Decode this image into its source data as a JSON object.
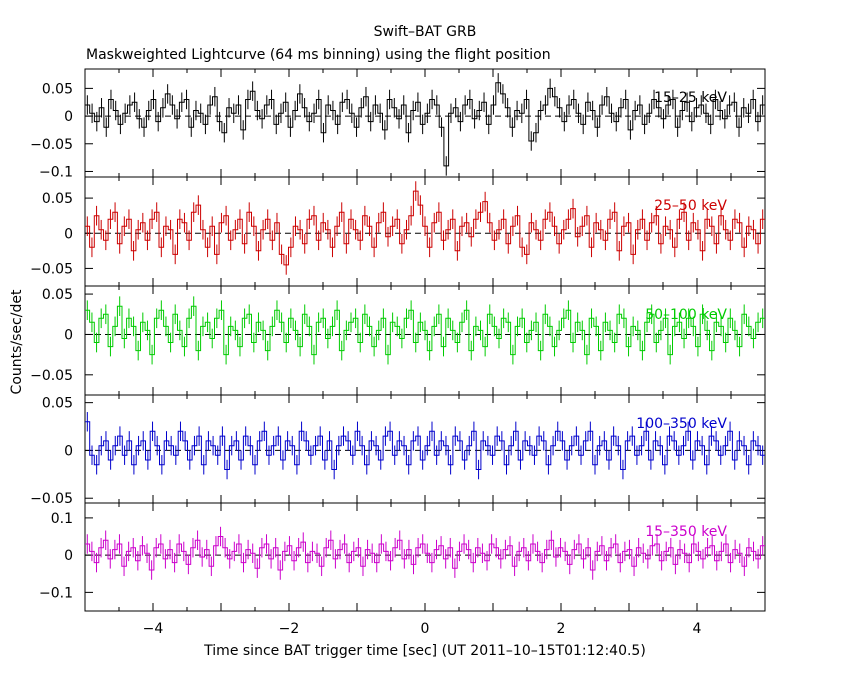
{
  "title": "Swift–BAT GRB",
  "subtitle": "Maskweighted Lightcurve (64 ms binning) using the flight position",
  "xlabel": "Time since BAT trigger time [sec] (UT 2011–10–15T01:12:40.5)",
  "ylabel": "Counts/sec/det",
  "xlim": [
    -5,
    5
  ],
  "xticks": [
    -4,
    -2,
    0,
    2,
    4
  ],
  "xtick_labels": [
    "−4",
    "−2",
    "0",
    "2",
    "4"
  ],
  "chart_data": [
    {
      "type": "line",
      "name": "15–25 keV",
      "color": "#000000",
      "ylim": [
        -0.11,
        0.085
      ],
      "yticks": [
        0.05,
        0,
        -0.05,
        -0.1
      ],
      "ytick_labels": [
        "0.05",
        "0",
        "−0.05",
        "−0.1"
      ],
      "values": [
        0.02,
        0.005,
        -0.01,
        0.015,
        -0.02,
        0.03,
        0.01,
        -0.015,
        0.005,
        0.02,
        0.025,
        -0.005,
        -0.02,
        0.01,
        0.03,
        -0.01,
        0.015,
        0.04,
        0.02,
        -0.005,
        0.025,
        0.03,
        -0.02,
        0.01,
        0.005,
        -0.015,
        0.02,
        0.035,
        -0.01,
        -0.03,
        0.015,
        0.005,
        0.02,
        -0.025,
        0.03,
        0.045,
        0.01,
        -0.005,
        0.02,
        0.03,
        -0.015,
        0.005,
        0.025,
        -0.02,
        0.01,
        0.04,
        0.015,
        -0.01,
        0.005,
        0.03,
        -0.03,
        0.02,
        0.01,
        -0.015,
        0.025,
        0.03,
        0.005,
        -0.02,
        0.015,
        0.035,
        -0.01,
        0.02,
        0.005,
        -0.025,
        0.03,
        0.015,
        -0.005,
        0.02,
        -0.03,
        0.01,
        0.025,
        -0.015,
        0.005,
        0.03,
        0.02,
        -0.02,
        -0.09,
        0.005,
        0.015,
        -0.01,
        0.02,
        0.03,
        -0.005,
        0.01,
        0.025,
        -0.015,
        0.02,
        0.06,
        0.04,
        0.015,
        -0.02,
        0.01,
        0.005,
        0.03,
        -0.045,
        -0.03,
        0.01,
        0.02,
        0.05,
        0.035,
        0.015,
        -0.01,
        0.02,
        0.03,
        0.005,
        -0.015,
        0.025,
        0.01,
        -0.02,
        0.02,
        0.035,
        0.005,
        -0.01,
        0.015,
        0.03,
        -0.025,
        0.01,
        0.02,
        -0.015,
        0.005,
        0.03,
        0.015,
        -0.005,
        0.02,
        0.03,
        -0.02,
        0.01,
        0.025,
        -0.01,
        0.015,
        0.02,
        0.005,
        -0.015,
        0.03,
        0.01,
        -0.005,
        0.02,
        0.025,
        -0.02,
        0.015,
        0.005,
        0.03,
        -0.01,
        0.02
      ]
    },
    {
      "type": "line",
      "name": "25–50 keV",
      "color": "#cc0000",
      "ylim": [
        -0.075,
        0.08
      ],
      "yticks": [
        0.05,
        0,
        -0.05
      ],
      "ytick_labels": [
        "0.05",
        "0",
        "−0.05"
      ],
      "values": [
        0.01,
        -0.02,
        0.025,
        0.005,
        -0.01,
        0.02,
        0.03,
        -0.015,
        0.01,
        0.02,
        -0.025,
        0.005,
        0.015,
        -0.01,
        0.02,
        0.03,
        -0.02,
        0.01,
        0.005,
        -0.03,
        0.02,
        0.015,
        -0.01,
        0.03,
        0.04,
        0.005,
        -0.02,
        0.01,
        -0.03,
        0.015,
        0.025,
        -0.01,
        0.005,
        0.02,
        -0.015,
        0.03,
        0.01,
        -0.025,
        0.005,
        0.02,
        -0.01,
        0.015,
        -0.03,
        -0.045,
        -0.02,
        0.01,
        0.005,
        -0.015,
        0.02,
        0.025,
        -0.01,
        0.015,
        0.005,
        -0.02,
        0.01,
        0.03,
        -0.015,
        0.02,
        0.005,
        -0.01,
        0.025,
        0.01,
        -0.02,
        0.015,
        0.03,
        -0.005,
        0.01,
        0.02,
        -0.015,
        0.005,
        0.025,
        0.06,
        0.04,
        0.01,
        -0.02,
        0.015,
        0.03,
        -0.01,
        0.005,
        0.02,
        -0.025,
        0.01,
        0.015,
        -0.005,
        0.02,
        0.03,
        0.045,
        0.015,
        -0.01,
        0.005,
        0.02,
        -0.015,
        0.01,
        0.025,
        -0.02,
        -0.03,
        0.015,
        0.005,
        -0.01,
        0.02,
        0.03,
        0.01,
        -0.015,
        0.005,
        0.02,
        0.035,
        -0.005,
        0.01,
        0.025,
        -0.02,
        0.015,
        0.005,
        -0.01,
        0.02,
        0.03,
        -0.025,
        0.01,
        0.015,
        -0.03,
        0.005,
        0.02,
        -0.01,
        0.015,
        0.025,
        -0.015,
        0.01,
        0.005,
        -0.02,
        0.02,
        0.03,
        -0.01,
        0.015,
        0.005,
        -0.025,
        0.02,
        0.01,
        -0.015,
        0.025,
        0.005,
        -0.01,
        0.02,
        0.015,
        -0.02,
        0.01,
        0.005,
        -0.015,
        0.02
      ]
    },
    {
      "type": "line",
      "name": "50–100 keV",
      "color": "#00cc00",
      "ylim": [
        -0.075,
        0.06
      ],
      "yticks": [
        0.05,
        0,
        -0.05
      ],
      "ytick_labels": [
        "0.05",
        "0",
        "−0.05"
      ],
      "values": [
        0.03,
        0.015,
        -0.01,
        0.02,
        0.025,
        -0.015,
        0.01,
        0.035,
        -0.005,
        0.02,
        0.01,
        -0.02,
        0.015,
        0.005,
        -0.025,
        0.02,
        0.03,
        0.01,
        -0.01,
        0.025,
        0.005,
        -0.015,
        0.02,
        0.035,
        -0.02,
        0.01,
        0.015,
        -0.005,
        0.02,
        0.03,
        -0.025,
        0.01,
        0.005,
        -0.015,
        0.02,
        0.025,
        -0.01,
        0.015,
        0.005,
        -0.02,
        0.01,
        0.03,
        0.015,
        -0.01,
        0.02,
        0.005,
        -0.015,
        0.025,
        0.01,
        -0.025,
        0.015,
        0.02,
        -0.005,
        0.01,
        0.03,
        -0.02,
        0.005,
        0.015,
        0.02,
        -0.01,
        0.025,
        0.01,
        -0.015,
        0.005,
        0.02,
        -0.025,
        0.015,
        0.01,
        -0.005,
        0.02,
        0.03,
        -0.01,
        0.015,
        0.005,
        -0.02,
        0.01,
        0.025,
        -0.015,
        0.02,
        0.005,
        -0.01,
        0.015,
        0.03,
        -0.02,
        0.01,
        0.005,
        -0.015,
        0.025,
        0.01,
        -0.005,
        0.02,
        0.015,
        -0.025,
        0.01,
        0.02,
        -0.01,
        0.005,
        0.015,
        -0.02,
        0.025,
        0.01,
        -0.015,
        0.005,
        0.02,
        0.03,
        -0.01,
        0.015,
        0.005,
        -0.025,
        0.02,
        0.01,
        -0.02,
        0.015,
        0.005,
        -0.01,
        0.025,
        0.02,
        -0.015,
        0.01,
        0.005,
        -0.02,
        0.015,
        0.025,
        -0.01,
        0.005,
        0.02,
        -0.025,
        0.01,
        0.015,
        -0.005,
        0.02,
        0.01,
        -0.015,
        0.025,
        0.005,
        -0.02,
        0.015,
        0.01,
        -0.01,
        0.02,
        0.005,
        -0.015,
        0.025,
        0.01,
        -0.005,
        0.015,
        0.02
      ]
    },
    {
      "type": "line",
      "name": "100–350 keV",
      "color": "#0000cc",
      "ylim": [
        -0.055,
        0.058
      ],
      "yticks": [
        0.05,
        0,
        -0.05
      ],
      "ytick_labels": [
        "0.05",
        "0",
        "−0.05"
      ],
      "values": [
        0.03,
        -0.005,
        -0.015,
        0.005,
        0.01,
        -0.01,
        0.005,
        0.015,
        -0.005,
        0.01,
        -0.015,
        0.005,
        0.01,
        -0.01,
        0.02,
        0.005,
        -0.015,
        0.01,
        0.005,
        -0.005,
        0.02,
        0.01,
        -0.01,
        0.005,
        0.015,
        -0.015,
        0.01,
        0.005,
        -0.005,
        0.015,
        -0.02,
        0.005,
        0.01,
        -0.01,
        0.015,
        0.005,
        -0.015,
        0.01,
        0.02,
        -0.005,
        0.005,
        0.015,
        -0.01,
        0.01,
        0.005,
        -0.015,
        0.02,
        0.01,
        -0.005,
        0.005,
        0.015,
        -0.01,
        0.01,
        -0.02,
        0.005,
        0.015,
        0.01,
        -0.005,
        0.02,
        0.005,
        -0.015,
        0.01,
        0.005,
        -0.01,
        0.015,
        0.02,
        -0.005,
        0.01,
        0.005,
        -0.015,
        0.01,
        0.015,
        -0.01,
        0.005,
        0.02,
        -0.005,
        0.01,
        0.005,
        -0.015,
        0.015,
        0.01,
        -0.01,
        0.005,
        0.02,
        -0.02,
        0.01,
        0.005,
        -0.005,
        0.015,
        0.01,
        -0.015,
        0.005,
        0.02,
        -0.01,
        0.01,
        0.005,
        -0.005,
        0.015,
        0.01,
        -0.015,
        0.005,
        0.02,
        0.01,
        -0.01,
        0.005,
        0.015,
        -0.005,
        0.01,
        0.02,
        -0.015,
        0.005,
        0.01,
        -0.01,
        0.015,
        0.005,
        -0.02,
        0.01,
        0.015,
        -0.005,
        0.005,
        0.02,
        -0.01,
        0.01,
        0.005,
        -0.015,
        0.015,
        0.01,
        -0.005,
        0.005,
        0.02,
        -0.01,
        0.01,
        0.005,
        -0.015,
        0.015,
        0.01,
        -0.005,
        0.005,
        0.02,
        -0.01,
        0.01,
        0.005,
        -0.015,
        0.01,
        0.005,
        -0.005
      ]
    },
    {
      "type": "line",
      "name": "15–350 keV",
      "color": "#cc00cc",
      "ylim": [
        -0.15,
        0.14
      ],
      "yticks": [
        0.1,
        0,
        -0.1
      ],
      "ytick_labels": [
        "0.1",
        "0",
        "−0.1"
      ],
      "values": [
        0.03,
        0.01,
        -0.02,
        0.02,
        0.04,
        -0.01,
        0.015,
        0.03,
        -0.03,
        0.01,
        0.02,
        -0.015,
        0.025,
        0.005,
        -0.04,
        0.02,
        0.03,
        -0.01,
        0.015,
        -0.02,
        0.03,
        0.01,
        -0.025,
        0.02,
        0.04,
        -0.005,
        0.015,
        -0.03,
        0.025,
        0.05,
        0.02,
        -0.01,
        0.01,
        0.03,
        -0.02,
        0.015,
        0.005,
        -0.035,
        0.02,
        0.03,
        -0.01,
        0.02,
        -0.04,
        0.01,
        0.025,
        -0.015,
        0.02,
        0.035,
        -0.02,
        0.01,
        0.005,
        -0.03,
        0.02,
        0.04,
        -0.01,
        0.015,
        0.03,
        -0.02,
        0.01,
        0.02,
        -0.03,
        0.015,
        0.005,
        -0.02,
        0.03,
        0.01,
        -0.015,
        0.02,
        0.04,
        -0.01,
        0.015,
        -0.025,
        0.02,
        0.03,
        0.005,
        -0.02,
        0.015,
        0.025,
        -0.01,
        0.02,
        -0.035,
        0.01,
        0.03,
        0.015,
        -0.02,
        0.02,
        0.005,
        -0.015,
        0.03,
        0.02,
        -0.01,
        0.015,
        0.025,
        -0.03,
        0.01,
        0.02,
        -0.015,
        0.03,
        0.01,
        -0.02,
        0.015,
        0.04,
        -0.005,
        0.02,
        0.01,
        -0.025,
        0.015,
        0.03,
        -0.01,
        0.02,
        -0.04,
        0.01,
        0.025,
        -0.015,
        0.02,
        0.03,
        -0.02,
        0.01,
        0.015,
        -0.03,
        0.02,
        0.005,
        -0.01,
        0.025,
        0.03,
        -0.015,
        0.01,
        0.02,
        -0.025,
        0.015,
        0.005,
        -0.02,
        0.03,
        0.01,
        -0.01,
        0.02,
        0.025,
        -0.015,
        0.01,
        0.03,
        -0.02,
        0.015,
        0.005,
        -0.03,
        0.02,
        0.01,
        -0.01,
        0.025
      ]
    }
  ]
}
